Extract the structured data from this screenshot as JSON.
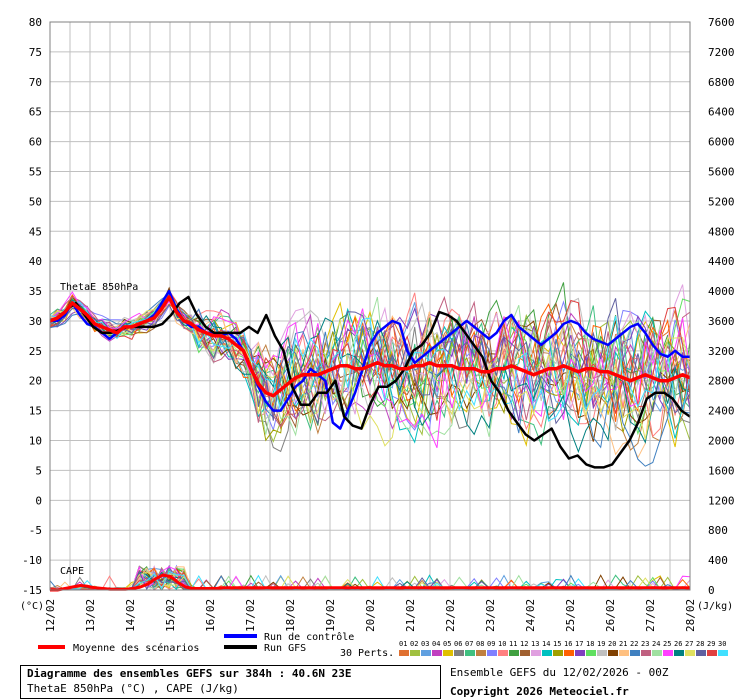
{
  "chart_data": {
    "type": "line",
    "x_dates": [
      "12/02",
      "13/02",
      "14/02",
      "15/02",
      "16/02",
      "17/02",
      "18/02",
      "19/02",
      "20/02",
      "21/02",
      "22/02",
      "23/02",
      "24/02",
      "25/02",
      "26/02",
      "27/02",
      "28/02"
    ],
    "y_left": {
      "unit": "(°C)",
      "min": -15,
      "max": 80,
      "ticks": [
        80,
        75,
        70,
        65,
        60,
        55,
        50,
        45,
        40,
        35,
        30,
        25,
        20,
        15,
        10,
        5,
        0,
        -5,
        -10,
        -15
      ]
    },
    "y_right": {
      "unit": "(J/kg)",
      "ticks": [
        7600,
        7200,
        6800,
        6400,
        6000,
        5600,
        5200,
        4800,
        4400,
        4000,
        3600,
        3200,
        2800,
        2400,
        2000,
        1600,
        1200,
        800,
        400,
        0
      ]
    },
    "labels": {
      "thetae": "ThetaE 850hPa",
      "cape": "CAPE"
    },
    "mean_scenarios": [
      30,
      30.5,
      31.5,
      33,
      32,
      31,
      29.5,
      29,
      28.5,
      28,
      29,
      29,
      29.5,
      30,
      30.5,
      32,
      34,
      31.5,
      30,
      29.5,
      28.5,
      28,
      27.5,
      27.5,
      27,
      26,
      25,
      22,
      19.5,
      18,
      17.5,
      18.5,
      19.5,
      20.5,
      21,
      21,
      21,
      21.5,
      22,
      22.5,
      22.5,
      22,
      22,
      22.5,
      23,
      22.5,
      22.5,
      22,
      22,
      22.5,
      22.5,
      23,
      22.5,
      22.5,
      22.5,
      22,
      22,
      22,
      21.5,
      21.5,
      22,
      22,
      22.5,
      22,
      21.5,
      21,
      21.5,
      22,
      22,
      22.5,
      22,
      21.5,
      22,
      22,
      21.5,
      21.5,
      21,
      20.5,
      20,
      20.5,
      21,
      20.5,
      20,
      20,
      20.5,
      21,
      20.5
    ],
    "control_run": [
      30,
      30,
      31,
      33,
      31,
      29.5,
      29,
      28,
      27,
      28,
      29,
      29,
      29.5,
      30,
      31,
      33,
      35,
      32,
      30,
      29,
      29,
      28,
      28,
      27.5,
      28,
      27,
      25,
      22,
      19,
      16.5,
      15,
      15,
      17,
      19,
      20,
      22,
      21,
      20,
      13,
      12,
      15,
      18,
      22,
      26,
      28,
      29,
      30,
      29.5,
      25,
      23,
      24,
      25,
      26,
      27,
      28,
      29,
      30,
      29,
      28,
      27,
      28,
      30,
      31,
      29,
      28,
      27,
      26,
      27,
      28,
      29.5,
      30,
      29.5,
      28,
      27,
      26.5,
      26,
      27,
      28,
      29,
      29.5,
      28,
      26,
      24.5,
      24,
      25,
      24,
      24
    ],
    "gfs_run": [
      30,
      30.5,
      32,
      33,
      31,
      29,
      28,
      28,
      28.5,
      29,
      29,
      29,
      29,
      29.5,
      31,
      33,
      34,
      31,
      29,
      28,
      28,
      28,
      28,
      29,
      28,
      31,
      27.5,
      25,
      19,
      16,
      16,
      18,
      18,
      20,
      14,
      12.5,
      12,
      16,
      19,
      19,
      20,
      22,
      25,
      26,
      28,
      31.5,
      31,
      30,
      28,
      26,
      24,
      20,
      18,
      15,
      13,
      11,
      10,
      11,
      12,
      9,
      7,
      7.5,
      6,
      5.5,
      5.5,
      6,
      8,
      10,
      13,
      17,
      18,
      18,
      17,
      15,
      14
    ],
    "cape_mean_kjkg": [
      0,
      0,
      20,
      40,
      60,
      50,
      30,
      20,
      10,
      10,
      10,
      20,
      40,
      80,
      150,
      200,
      180,
      100,
      40,
      20,
      20,
      20,
      20,
      30,
      30,
      30,
      30,
      30,
      30,
      30,
      30,
      30,
      30,
      30,
      30,
      30,
      30,
      30,
      30,
      30,
      30,
      30,
      30,
      30,
      30,
      30,
      30,
      30,
      30,
      30,
      30,
      30,
      30,
      30,
      30,
      30,
      30,
      30,
      30,
      30,
      30,
      30,
      30,
      30,
      30,
      30,
      30,
      30,
      30,
      30,
      30,
      30,
      30,
      30,
      30,
      30,
      30,
      30,
      30,
      30,
      30,
      30,
      30,
      30,
      30,
      30
    ],
    "legend": {
      "mean": "Moyenne des scénarios",
      "control": "Run de contrôle",
      "gfs": "Run GFS",
      "perts": "30 Perts.",
      "perts_ids": [
        "01",
        "02",
        "03",
        "04",
        "05",
        "06",
        "07",
        "08",
        "09",
        "10",
        "11",
        "12",
        "13",
        "14",
        "15",
        "16",
        "17",
        "18",
        "19",
        "20",
        "21",
        "22",
        "23",
        "24",
        "25",
        "26",
        "27",
        "28",
        "29",
        "30"
      ],
      "perts_colors": [
        "#e07030",
        "#a0c040",
        "#60a0e0",
        "#c040c0",
        "#e0c000",
        "#808080",
        "#40c080",
        "#c08040",
        "#8080ff",
        "#ff8080",
        "#40a040",
        "#a06030",
        "#e0a0e0",
        "#00c0c0",
        "#a0a000",
        "#ff6000",
        "#8040c0",
        "#60e060",
        "#c0c0c0",
        "#804000",
        "#ffc080",
        "#4080c0",
        "#c06080",
        "#a0e0a0",
        "#ff40ff",
        "#008080",
        "#e0e060",
        "#6060a0",
        "#e04040",
        "#40e0ff"
      ]
    },
    "colors": {
      "mean": "#ff0000",
      "control": "#0000ff",
      "gfs": "#000000"
    }
  },
  "footer": {
    "title": "Diagramme des ensembles GEFS sur 384h : 40.6N 23E",
    "subtitle": "ThetaE 850hPa (°C) , CAPE (J/kg)",
    "run": "Ensemble GEFS du 12/02/2026 - 00Z",
    "copyright": "Copyright 2026 Meteociel.fr"
  }
}
